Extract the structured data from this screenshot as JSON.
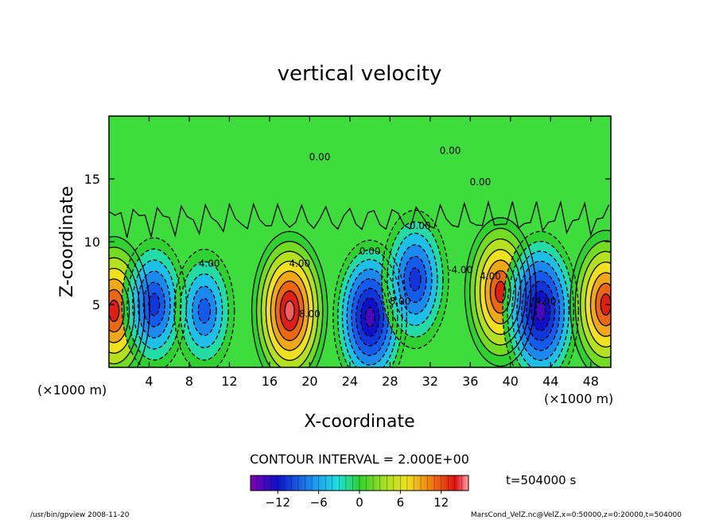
{
  "chart_data": {
    "type": "heatmap",
    "title": "vertical velocity",
    "xlabel": "X-coordinate",
    "ylabel": "Z-coordinate",
    "x_unit": "(×1000 m)",
    "y_unit": "(×1000 m)",
    "xlim": [
      0,
      50
    ],
    "ylim": [
      0,
      20
    ],
    "x_ticks": [
      4,
      8,
      12,
      16,
      20,
      24,
      28,
      32,
      36,
      40,
      44,
      48
    ],
    "x_tick_labels": [
      "4",
      "8",
      "12",
      "16",
      "20",
      "24",
      "28",
      "32",
      "36",
      "40",
      "44",
      "48"
    ],
    "y_ticks": [
      5,
      10,
      15
    ],
    "y_tick_labels": [
      "5",
      "10",
      "15"
    ],
    "contour_interval_text": "CONTOUR INTERVAL = 2.000E+00",
    "contour_interval": 2.0,
    "contour_labels": [
      "0.00",
      "0.00",
      "0.00",
      "0.00",
      "0.00",
      "4.00",
      "4.00",
      "4.00",
      "8.00",
      "8.00",
      "-4.00",
      "4.00"
    ],
    "colorbar": {
      "range": [
        -16,
        16
      ],
      "ticks": [
        -12,
        -6,
        0,
        6,
        12
      ],
      "tick_labels": [
        "−12",
        "−6",
        "0",
        "6",
        "12"
      ]
    },
    "time_label": "t=504000 s",
    "cells": [
      {
        "x": 0.5,
        "z": 4.5,
        "w": 12
      },
      {
        "x": 4.5,
        "z": 5.0,
        "w": -9
      },
      {
        "x": 9.5,
        "z": 4.5,
        "w": -7
      },
      {
        "x": 18.0,
        "z": 4.5,
        "w": 14
      },
      {
        "x": 26.0,
        "z": 4.0,
        "w": -13
      },
      {
        "x": 30.5,
        "z": 7.0,
        "w": -10
      },
      {
        "x": 39.0,
        "z": 6.0,
        "w": 12
      },
      {
        "x": 43.0,
        "z": 4.5,
        "w": -14
      },
      {
        "x": 49.5,
        "z": 5.0,
        "w": 12
      }
    ]
  },
  "footer": {
    "left": "/usr/bin/gpview   2008-11-20",
    "right": "MarsCond_VelZ.nc@VelZ,x=0:50000,z=0:20000,t=504000"
  }
}
